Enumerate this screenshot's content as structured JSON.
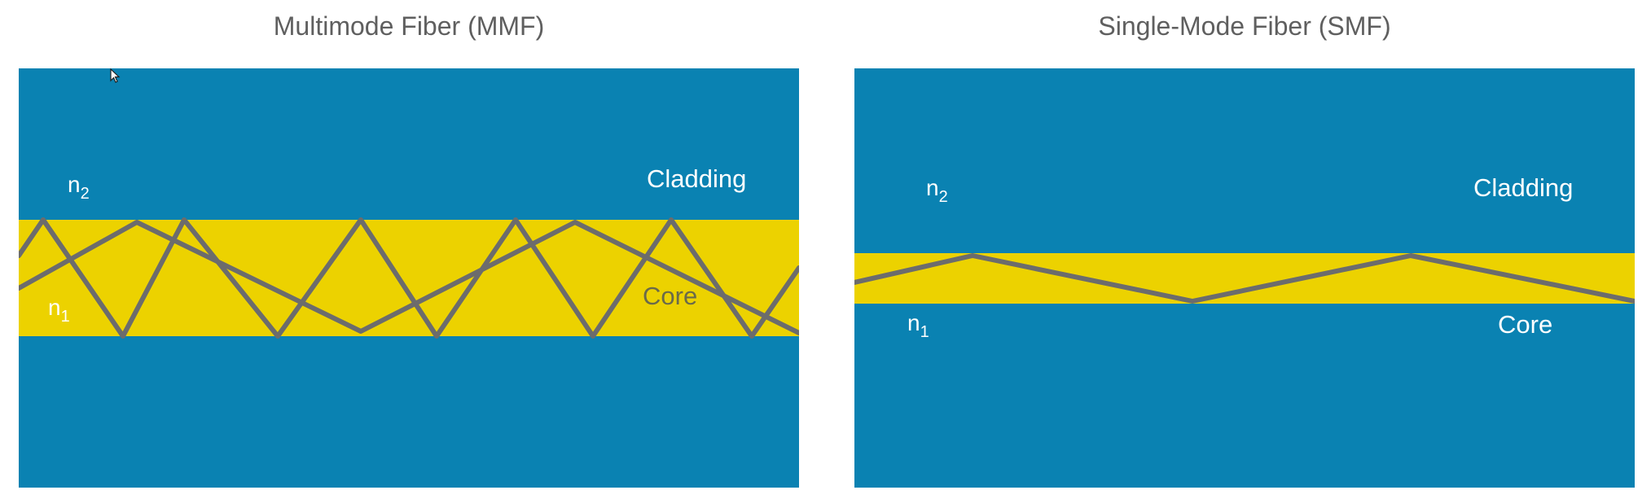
{
  "colors": {
    "cladding": "#0a82b2",
    "core": "#ecd200",
    "ray": "#6c6c6c",
    "title_text": "#5f5f5f",
    "label_light": "#ffffff",
    "label_core_mmf": "#6a6a4a"
  },
  "mmf": {
    "title": "Multimode Fiber (MMF)",
    "cladding_label": "Cladding",
    "core_label": "Core",
    "n_outer": "n",
    "n_outer_sub": "2",
    "n_inner": "n",
    "n_inner_sub": "1"
  },
  "smf": {
    "title": "Single-Mode Fiber (SMF)",
    "cladding_label": "Cladding",
    "core_label": "Core",
    "n_outer": "n",
    "n_outer_sub": "2",
    "n_inner": "n",
    "n_inner_sub": "1"
  }
}
